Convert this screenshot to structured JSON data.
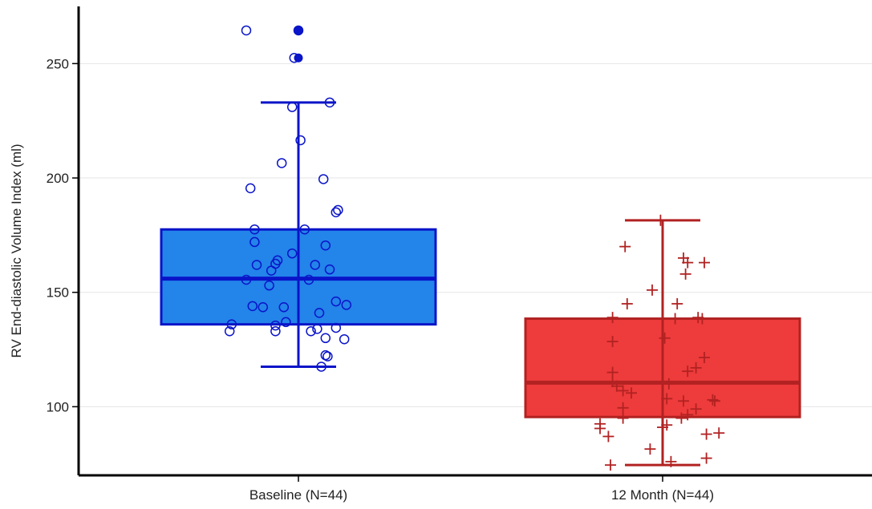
{
  "chart_data": {
    "type": "box",
    "title": "",
    "xlabel": "",
    "ylabel": "RV End-diastolic Volume Index (ml)",
    "ylim": [
      70,
      275
    ],
    "yticks": [
      100,
      150,
      200,
      250
    ],
    "grid": "horizontal",
    "categories": [
      "Baseline (N=44)",
      "12 Month (N=44)"
    ],
    "boxes": [
      {
        "category": "Baseline (N=44)",
        "q1": 136,
        "median": 156,
        "q3": 177.5,
        "whisker_low": 117.5,
        "whisker_high": 233,
        "fill": "#2384EA",
        "stroke": "#0A14C8",
        "marker": "open-circle",
        "outliers": [
          252.5,
          264.5
        ],
        "points": [
          {
            "jitter": -0.25,
            "y": 264.5
          },
          {
            "jitter": -0.02,
            "y": 252.5
          },
          {
            "jitter": 0.15,
            "y": 233
          },
          {
            "jitter": -0.03,
            "y": 231
          },
          {
            "jitter": 0.01,
            "y": 216.5
          },
          {
            "jitter": -0.08,
            "y": 206.5
          },
          {
            "jitter": 0.12,
            "y": 199.5
          },
          {
            "jitter": -0.23,
            "y": 195.5
          },
          {
            "jitter": 0.19,
            "y": 186
          },
          {
            "jitter": 0.18,
            "y": 185
          },
          {
            "jitter": -0.21,
            "y": 177.5
          },
          {
            "jitter": 0.03,
            "y": 177.5
          },
          {
            "jitter": -0.21,
            "y": 172
          },
          {
            "jitter": 0.13,
            "y": 170.5
          },
          {
            "jitter": -0.03,
            "y": 167
          },
          {
            "jitter": -0.1,
            "y": 164
          },
          {
            "jitter": -0.11,
            "y": 162.5
          },
          {
            "jitter": -0.2,
            "y": 162
          },
          {
            "jitter": 0.08,
            "y": 162
          },
          {
            "jitter": -0.13,
            "y": 159.5
          },
          {
            "jitter": 0.15,
            "y": 160
          },
          {
            "jitter": -0.25,
            "y": 155.5
          },
          {
            "jitter": 0.05,
            "y": 155.5
          },
          {
            "jitter": -0.14,
            "y": 153
          },
          {
            "jitter": 0.18,
            "y": 146
          },
          {
            "jitter": 0.23,
            "y": 144.5
          },
          {
            "jitter": -0.22,
            "y": 144
          },
          {
            "jitter": -0.17,
            "y": 143.5
          },
          {
            "jitter": -0.07,
            "y": 143.5
          },
          {
            "jitter": 0.1,
            "y": 141
          },
          {
            "jitter": -0.06,
            "y": 137
          },
          {
            "jitter": -0.32,
            "y": 136
          },
          {
            "jitter": -0.11,
            "y": 135.5
          },
          {
            "jitter": 0.18,
            "y": 134.5
          },
          {
            "jitter": -0.33,
            "y": 133
          },
          {
            "jitter": -0.11,
            "y": 133
          },
          {
            "jitter": 0.06,
            "y": 133
          },
          {
            "jitter": 0.09,
            "y": 134
          },
          {
            "jitter": 0.13,
            "y": 130
          },
          {
            "jitter": 0.22,
            "y": 129.5
          },
          {
            "jitter": 0.13,
            "y": 122.5
          },
          {
            "jitter": 0.14,
            "y": 122
          },
          {
            "jitter": 0.11,
            "y": 117.5
          },
          {
            "jitter": 0.0,
            "y": 264.5
          }
        ]
      },
      {
        "category": "12 Month (N=44)",
        "q1": 95.5,
        "median": 110.5,
        "q3": 138.5,
        "whisker_low": 74.5,
        "whisker_high": 181.5,
        "fill": "#EE3B3B",
        "stroke": "#B22222",
        "marker": "plus",
        "outliers": [],
        "points": [
          {
            "jitter": -0.01,
            "y": 181.5
          },
          {
            "jitter": -0.18,
            "y": 170
          },
          {
            "jitter": 0.1,
            "y": 165
          },
          {
            "jitter": 0.12,
            "y": 163
          },
          {
            "jitter": 0.2,
            "y": 163
          },
          {
            "jitter": 0.11,
            "y": 158
          },
          {
            "jitter": -0.05,
            "y": 151
          },
          {
            "jitter": -0.17,
            "y": 145
          },
          {
            "jitter": 0.07,
            "y": 145
          },
          {
            "jitter": -0.24,
            "y": 139
          },
          {
            "jitter": 0.17,
            "y": 139
          },
          {
            "jitter": 0.06,
            "y": 138.5
          },
          {
            "jitter": 0.19,
            "y": 138.5
          },
          {
            "jitter": 0.01,
            "y": 130
          },
          {
            "jitter": -0.24,
            "y": 128.5
          },
          {
            "jitter": 0.2,
            "y": 121.5
          },
          {
            "jitter": 0.16,
            "y": 117
          },
          {
            "jitter": 0.12,
            "y": 115.5
          },
          {
            "jitter": -0.24,
            "y": 115
          },
          {
            "jitter": -0.24,
            "y": 111
          },
          {
            "jitter": 0.03,
            "y": 110
          },
          {
            "jitter": -0.22,
            "y": 109
          },
          {
            "jitter": -0.19,
            "y": 107
          },
          {
            "jitter": -0.15,
            "y": 106
          },
          {
            "jitter": 0.02,
            "y": 103.5
          },
          {
            "jitter": 0.1,
            "y": 102.5
          },
          {
            "jitter": 0.24,
            "y": 103
          },
          {
            "jitter": 0.25,
            "y": 102.5
          },
          {
            "jitter": -0.19,
            "y": 99.5
          },
          {
            "jitter": 0.16,
            "y": 99
          },
          {
            "jitter": -0.19,
            "y": 95
          },
          {
            "jitter": 0.12,
            "y": 96.5
          },
          {
            "jitter": 0.09,
            "y": 95
          },
          {
            "jitter": -0.3,
            "y": 92.5
          },
          {
            "jitter": -0.3,
            "y": 90.5
          },
          {
            "jitter": 0.02,
            "y": 92
          },
          {
            "jitter": 0.0,
            "y": 91
          },
          {
            "jitter": 0.21,
            "y": 88
          },
          {
            "jitter": 0.27,
            "y": 88.5
          },
          {
            "jitter": -0.26,
            "y": 87
          },
          {
            "jitter": -0.06,
            "y": 81.5
          },
          {
            "jitter": 0.21,
            "y": 77.5
          },
          {
            "jitter": 0.04,
            "y": 76
          },
          {
            "jitter": -0.25,
            "y": 74.5
          }
        ]
      }
    ],
    "colors": {
      "grid": "#E6E6E6",
      "axis": "#000000",
      "outlier_fill": "#0A14C8"
    }
  }
}
